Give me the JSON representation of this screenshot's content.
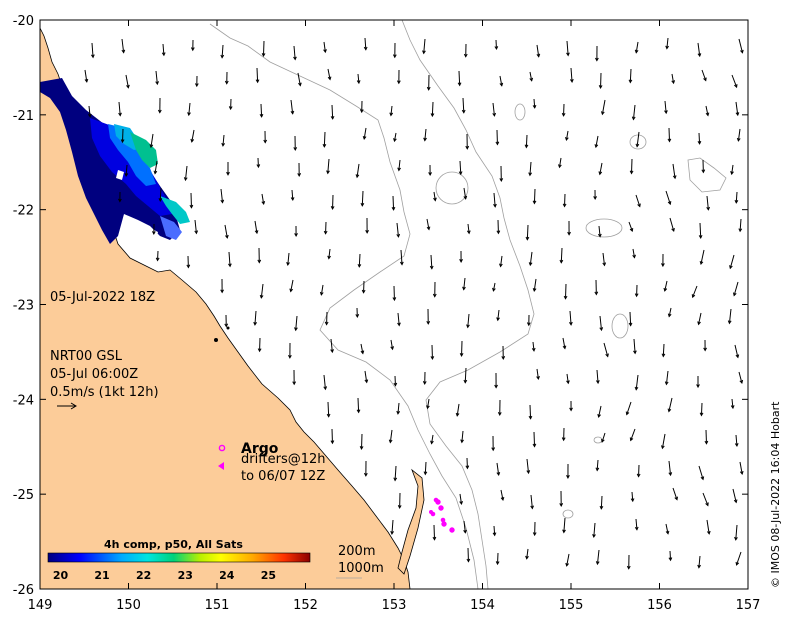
{
  "map": {
    "lon_range": [
      149,
      157
    ],
    "lat_range": [
      -26,
      -20
    ],
    "lon_ticks": [
      "149",
      "150",
      "151",
      "152",
      "153",
      "154",
      "155",
      "156",
      "157"
    ],
    "lat_ticks": [
      "-20",
      "-21",
      "-22",
      "-23",
      "-24",
      "-25",
      "-26"
    ],
    "land_color": "#fccc99",
    "ocean_color": "#ffffff",
    "contour_color": "#a0a0a0"
  },
  "annotations": {
    "date": "05-Jul-2022 18Z",
    "model_line1": "NRT00 GSL",
    "model_line2": "05-Jul 06:00Z",
    "scale_text": "0.5m/s (1kt 12h)"
  },
  "legend": {
    "argo_label": "Argo",
    "drifters_line1": "drifters@12h",
    "drifters_line2": "to 06/07 12Z",
    "argo_color": "#ff00ff",
    "contour_200": "200m",
    "contour_1000": "1000m"
  },
  "colorbar": {
    "title": "4h comp, p50, All Sats",
    "tick_labels": [
      "20",
      "21",
      "22",
      "23",
      "24",
      "25"
    ],
    "range": [
      19.7,
      26
    ]
  },
  "credit": "© IMOS 08-Jul-2022 16:04 Hobart"
}
